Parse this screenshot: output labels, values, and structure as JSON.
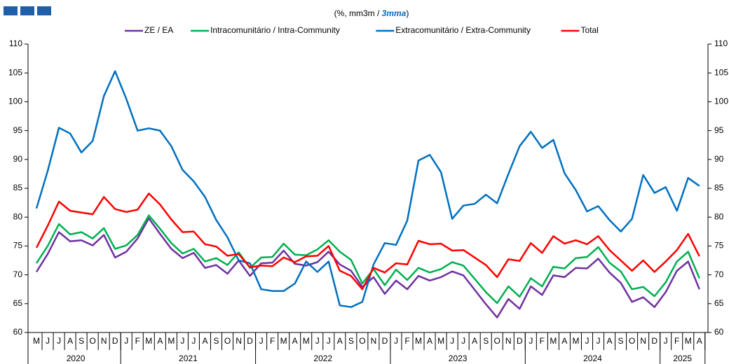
{
  "chart_data": {
    "type": "line",
    "subtitle": [
      "(%, mm3m / ",
      "3mma",
      ")"
    ],
    "category_groups": [
      {
        "label": "2020",
        "categories": [
          "M",
          "J",
          "J",
          "A",
          "S",
          "O",
          "N",
          "D"
        ]
      },
      {
        "label": "2021",
        "categories": [
          "J",
          "F",
          "M",
          "A",
          "M",
          "J",
          "J",
          "A",
          "S",
          "O",
          "N",
          "D"
        ]
      },
      {
        "label": "2022",
        "categories": [
          "J",
          "F",
          "M",
          "A",
          "M",
          "J",
          "J",
          "A",
          "S",
          "O",
          "N",
          "D"
        ]
      },
      {
        "label": "2023",
        "categories": [
          "J",
          "F",
          "M",
          "A",
          "M",
          "J",
          "J",
          "A",
          "S",
          "O",
          "N",
          "D"
        ]
      },
      {
        "label": "2024",
        "categories": [
          "J",
          "F",
          "M",
          "A",
          "M",
          "J",
          "J",
          "A",
          "S",
          "O",
          "N",
          "D"
        ]
      },
      {
        "label": "2025",
        "categories": [
          "J",
          "F",
          "M",
          "A"
        ]
      }
    ],
    "series": [
      {
        "name": "ZE / EA",
        "color": "#7030a0",
        "values": [
          70.5,
          73.6,
          77.4,
          75.8,
          76,
          75.1,
          76.9,
          73,
          74,
          76.3,
          79.8,
          77.1,
          74.5,
          72.9,
          73.8,
          71.2,
          71.7,
          70.2,
          72.5,
          69.8,
          72,
          72.1,
          74.2,
          71.9,
          71.6,
          72.2,
          74,
          71.8,
          70.7,
          67.9,
          69.6,
          66.7,
          69,
          67.5,
          69.8,
          69,
          69.6,
          70.6,
          69.9,
          67.4,
          64.9,
          62.6,
          65.8,
          64.1,
          68,
          66.5,
          69.9,
          69.6,
          71.2,
          71.1,
          72.8,
          70.4,
          68.6,
          65.3,
          66.1,
          64.4,
          67,
          70.7,
          72.3,
          67.5
        ]
      },
      {
        "name": "Intracomunitário / Intra-Community",
        "color": "#00b050",
        "values": [
          72,
          75,
          78.8,
          77,
          77.4,
          76.3,
          78.1,
          74.5,
          75.1,
          76.9,
          80.3,
          78,
          75.5,
          73.7,
          74.5,
          72.3,
          72.9,
          71.7,
          73.9,
          71.2,
          73,
          73.1,
          75.4,
          73.5,
          73.4,
          74.4,
          76,
          74,
          72.6,
          68.5,
          71,
          68.2,
          70.9,
          69.1,
          71.2,
          70.4,
          71,
          72.2,
          71.6,
          69.3,
          67,
          65.1,
          68,
          66.2,
          69.4,
          68,
          71.4,
          71.1,
          72.9,
          73.1,
          74.8,
          72.1,
          70.6,
          67.5,
          67.9,
          66.3,
          68.7,
          72.3,
          74,
          69.4
        ]
      },
      {
        "name": "Extracomunitário / Extra-Community",
        "color": "#0070c0",
        "values": [
          81.5,
          88,
          95.5,
          94.5,
          91.2,
          93.2,
          101,
          105.3,
          100.5,
          95,
          95.4,
          95,
          92.3,
          88.2,
          86.2,
          83.5,
          79.5,
          76.5,
          72.5,
          72,
          67.5,
          67.2,
          67.2,
          68.5,
          72.3,
          70.5,
          72.3,
          64.7,
          64.4,
          65.3,
          71.8,
          75.5,
          75.2,
          79.4,
          89.8,
          90.8,
          87.8,
          79.7,
          82,
          82.3,
          83.9,
          82.4,
          87.5,
          92.3,
          94.8,
          92,
          93.4,
          87.6,
          84.7,
          81,
          81.9,
          79.5,
          77.5,
          79.7,
          87.3,
          84.2,
          85.2,
          81.1,
          86.8,
          85.4
        ]
      },
      {
        "name": "Total",
        "color": "#ff0000",
        "values": [
          74.7,
          78.5,
          82.7,
          81.1,
          80.8,
          80.5,
          83.5,
          81.4,
          80.9,
          81.3,
          84.1,
          82.2,
          79.6,
          77.4,
          77.5,
          75.3,
          74.9,
          73.3,
          73.6,
          71.3,
          71.6,
          71.5,
          73,
          72.2,
          73.2,
          73.3,
          75,
          70.7,
          69.8,
          67.5,
          71.2,
          70.4,
          72,
          71.8,
          75.9,
          75.3,
          75.4,
          74.2,
          74.3,
          73,
          71.7,
          69.6,
          72.7,
          72.4,
          75.5,
          73.8,
          76.7,
          75.4,
          76,
          75.3,
          76.7,
          74.3,
          72.5,
          70.7,
          72.5,
          70.5,
          72.3,
          74.3,
          77.1,
          73.2
        ]
      }
    ],
    "ylim": [
      60,
      110
    ],
    "yticks": [
      60,
      65,
      70,
      75,
      80,
      85,
      90,
      95,
      100,
      105,
      110
    ],
    "y2lim": [
      60,
      110
    ],
    "y2ticks": [
      60,
      65,
      70,
      75,
      80,
      85,
      90,
      95,
      100,
      105,
      110
    ]
  }
}
